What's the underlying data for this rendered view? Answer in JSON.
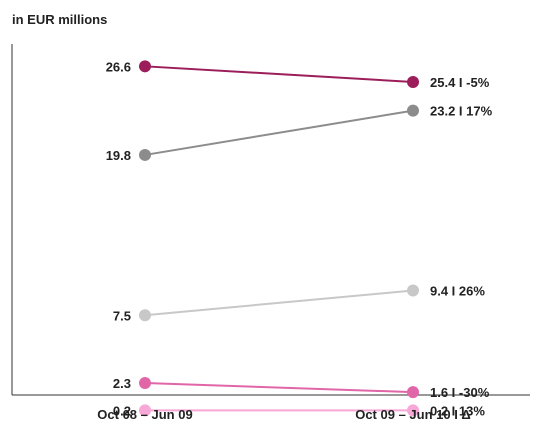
{
  "unit_label": "in EUR millions",
  "chart_data": {
    "type": "line",
    "title": "",
    "xlabel": "",
    "ylabel": "in EUR millions",
    "categories": [
      "Oct 08 – Jun 09",
      "Oct 09 – Jun 10 I Δ"
    ],
    "ylim": [
      0,
      30
    ],
    "grid": false,
    "series": [
      {
        "color": "#9b1d5a",
        "values": [
          26.6,
          25.4
        ],
        "start_label": "26.6",
        "end_label": "25.4 I -5%"
      },
      {
        "color": "#8c8c8c",
        "values": [
          19.8,
          23.2
        ],
        "start_label": "19.8",
        "end_label": "23.2 I 17%"
      },
      {
        "color": "#c8c8c8",
        "values": [
          7.5,
          9.4
        ],
        "start_label": "7.5",
        "end_label": "9.4 I 26%"
      },
      {
        "color": "#e066a8",
        "values": [
          2.3,
          1.6
        ],
        "start_label": "2.3",
        "end_label": "1.6 I -30%"
      },
      {
        "color": "#f7a8d6",
        "values": [
          0.2,
          0.2
        ],
        "start_label": "0.2",
        "end_label": "0.2 I 13%"
      }
    ]
  }
}
